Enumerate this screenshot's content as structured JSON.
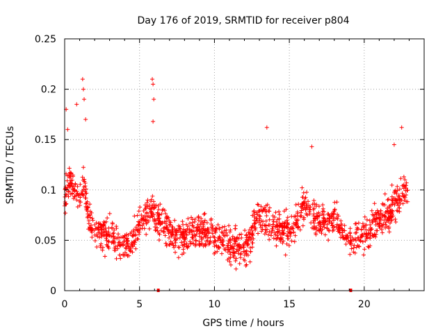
{
  "chart_data": {
    "type": "scatter",
    "title": "Day 176 of 2019, SRMTID for receiver p804",
    "xlabel": "GPS time / hours",
    "ylabel": "SRMTID / TECUs",
    "xlim": [
      0,
      24
    ],
    "ylim": [
      0,
      0.25
    ],
    "x_ticks": [
      0,
      5,
      10,
      15,
      20
    ],
    "x_tick_labels": [
      "0",
      "5",
      "10",
      "15",
      "20"
    ],
    "y_ticks": [
      0,
      0.05,
      0.1,
      0.15,
      0.2,
      0.25
    ],
    "y_tick_labels": [
      "0",
      "0.05",
      "0.1",
      "0.15",
      "0.2",
      "0.25"
    ],
    "grid": true,
    "marker": "plus",
    "color": "#ff0000",
    "data_range_hours": [
      0,
      22.9
    ],
    "trend": {
      "x": [
        0,
        0.3,
        0.6,
        1.0,
        1.3,
        1.6,
        2.0,
        2.5,
        3.0,
        3.5,
        4.0,
        4.5,
        5.0,
        5.5,
        6.0,
        6.5,
        7.0,
        7.5,
        8.0,
        8.5,
        9.0,
        9.5,
        10.0,
        10.5,
        11.0,
        11.5,
        12.0,
        12.5,
        13.0,
        13.5,
        14.0,
        14.5,
        15.0,
        15.5,
        16.0,
        16.5,
        17.0,
        17.5,
        18.0,
        18.5,
        19.0,
        19.5,
        20.0,
        20.5,
        21.0,
        21.5,
        22.0,
        22.5,
        22.9
      ],
      "y": [
        0.09,
        0.11,
        0.1,
        0.09,
        0.11,
        0.07,
        0.06,
        0.055,
        0.06,
        0.05,
        0.045,
        0.045,
        0.07,
        0.075,
        0.08,
        0.065,
        0.06,
        0.055,
        0.055,
        0.06,
        0.06,
        0.055,
        0.055,
        0.05,
        0.045,
        0.045,
        0.04,
        0.055,
        0.075,
        0.07,
        0.065,
        0.06,
        0.06,
        0.065,
        0.085,
        0.07,
        0.07,
        0.065,
        0.07,
        0.06,
        0.05,
        0.05,
        0.055,
        0.06,
        0.07,
        0.075,
        0.085,
        0.095,
        0.1
      ]
    },
    "spikes": [
      {
        "x": 0.1,
        "y": 0.18
      },
      {
        "x": 0.2,
        "y": 0.16
      },
      {
        "x": 1.2,
        "y": 0.21
      },
      {
        "x": 1.25,
        "y": 0.2
      },
      {
        "x": 1.3,
        "y": 0.19
      },
      {
        "x": 1.4,
        "y": 0.17
      },
      {
        "x": 0.8,
        "y": 0.185
      },
      {
        "x": 5.85,
        "y": 0.21
      },
      {
        "x": 5.9,
        "y": 0.205
      },
      {
        "x": 5.95,
        "y": 0.19
      },
      {
        "x": 5.9,
        "y": 0.168
      },
      {
        "x": 13.5,
        "y": 0.162
      },
      {
        "x": 16.5,
        "y": 0.143
      },
      {
        "x": 22.5,
        "y": 0.162
      },
      {
        "x": 22.0,
        "y": 0.145
      }
    ],
    "zero_points": [
      {
        "x": 6.25,
        "y": 0
      },
      {
        "x": 19.1,
        "y": 0
      }
    ]
  }
}
